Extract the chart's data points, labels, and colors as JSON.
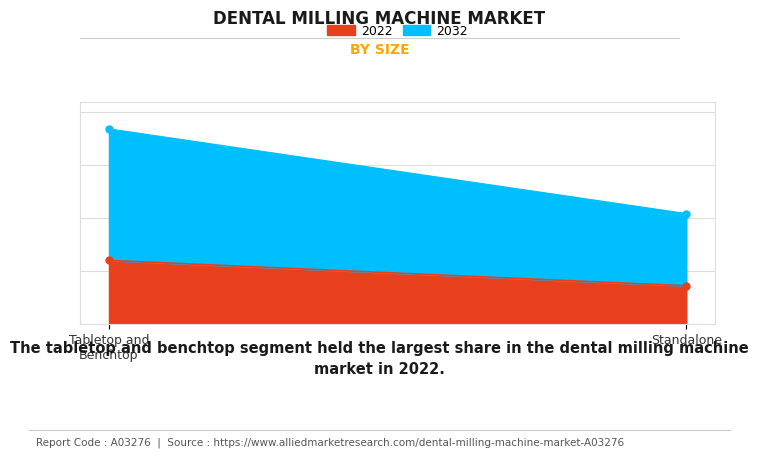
{
  "title": "DENTAL MILLING MACHINE MARKET",
  "subtitle": "BY SIZE",
  "subtitle_color": "#FFA500",
  "categories": [
    "Tabletop and\nBenchtop",
    "Standalone"
  ],
  "series": [
    {
      "name": "2022",
      "values": [
        0.3,
        0.18
      ],
      "color": "#E8401C",
      "marker_color": "#E8401C"
    },
    {
      "name": "2032",
      "values": [
        0.92,
        0.52
      ],
      "color": "#00BFFF",
      "marker_color": "#00BFFF"
    }
  ],
  "ylim": [
    0,
    1.05
  ],
  "xlim": [
    -0.05,
    1.05
  ],
  "background_color": "#FFFFFF",
  "plot_background_color": "#FFFFFF",
  "grid_color": "#DDDDDD",
  "legend_labels": [
    "2022",
    "2032"
  ],
  "legend_colors": [
    "#E8401C",
    "#00BFFF"
  ],
  "caption": "The tabletop and benchtop segment held the largest share in the dental milling machine\nmarket in 2022.",
  "footer": "Report Code : A03276  |  Source : https://www.alliedmarketresearch.com/dental-milling-machine-market-A03276",
  "title_fontsize": 12,
  "subtitle_fontsize": 10,
  "caption_fontsize": 10.5,
  "footer_fontsize": 7.5
}
